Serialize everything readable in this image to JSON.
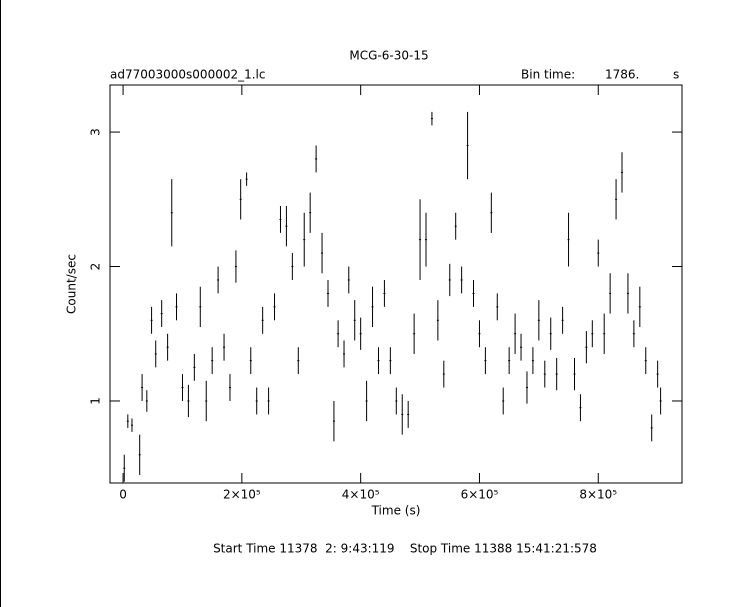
{
  "chart_data": {
    "type": "errorbar",
    "title": "MCG-6-30-15",
    "file_name": "ad77003000s000002_1.lc",
    "bin_time_label": "Bin time:",
    "bin_time": "1786.",
    "bin_time_unit": "s",
    "xlabel": "Time (s)",
    "ylabel": "Count/sec",
    "footer": "Start Time 11378  2: 9:43:119    Stop Time 11388 15:41:21:578",
    "xlim": [
      -22000,
      941000
    ],
    "ylim": [
      0.39,
      3.35
    ],
    "xticks": [
      0,
      {
        "value": 200000,
        "label": "2×10⁵"
      },
      {
        "value": 400000,
        "label": "4×10⁵"
      },
      {
        "value": 600000,
        "label": "6×10⁵"
      },
      {
        "value": 800000,
        "label": "8×10⁵"
      }
    ],
    "yticks": [
      1,
      2,
      3
    ],
    "color": "#000000",
    "x": [
      2000,
      8000,
      15000,
      28000,
      32000,
      40000,
      48000,
      55000,
      65000,
      75000,
      82000,
      90000,
      100000,
      110000,
      120000,
      130000,
      140000,
      150000,
      160000,
      170000,
      180000,
      190000,
      198000,
      208000,
      215000,
      225000,
      235000,
      245000,
      255000,
      265000,
      275000,
      285000,
      295000,
      305000,
      315000,
      325000,
      335000,
      345000,
      355000,
      362000,
      372000,
      380000,
      390000,
      400000,
      410000,
      420000,
      430000,
      440000,
      450000,
      460000,
      470000,
      480000,
      490000,
      500000,
      510000,
      520000,
      530000,
      540000,
      550000,
      560000,
      570000,
      580000,
      590000,
      600000,
      610000,
      620000,
      630000,
      640000,
      650000,
      660000,
      670000,
      680000,
      690000,
      700000,
      710000,
      720000,
      730000,
      740000,
      750000,
      760000,
      770000,
      780000,
      790000,
      800000,
      810000,
      820000,
      830000,
      840000,
      850000,
      860000,
      870000,
      880000,
      890000,
      900000,
      905000
    ],
    "values": [
      0.5,
      0.85,
      0.82,
      0.6,
      1.1,
      1.0,
      1.6,
      1.35,
      1.65,
      1.4,
      2.4,
      1.7,
      1.1,
      1.0,
      1.25,
      1.7,
      1.0,
      1.3,
      1.9,
      1.4,
      1.1,
      2.0,
      2.5,
      2.65,
      1.3,
      1.0,
      1.6,
      1.0,
      1.7,
      2.35,
      2.3,
      2.0,
      1.3,
      2.2,
      2.4,
      2.8,
      2.1,
      1.8,
      0.85,
      1.5,
      1.35,
      1.9,
      1.6,
      1.5,
      1.0,
      1.7,
      1.3,
      1.8,
      1.3,
      1.0,
      0.9,
      0.9,
      1.5,
      2.2,
      2.2,
      3.1,
      1.6,
      1.2,
      1.9,
      2.3,
      1.9,
      2.9,
      1.8,
      1.5,
      1.3,
      2.4,
      1.7,
      1.0,
      1.3,
      1.5,
      1.4,
      1.1,
      1.3,
      1.6,
      1.2,
      1.5,
      1.2,
      1.6,
      2.2,
      1.2,
      0.95,
      1.4,
      1.5,
      2.1,
      1.5,
      1.8,
      2.5,
      2.7,
      1.8,
      1.5,
      1.7,
      1.3,
      0.8,
      1.2,
      1.0
    ],
    "errors": [
      0.1,
      0.05,
      0.05,
      0.15,
      0.1,
      0.08,
      0.1,
      0.1,
      0.1,
      0.1,
      0.25,
      0.1,
      0.1,
      0.12,
      0.1,
      0.15,
      0.15,
      0.1,
      0.1,
      0.1,
      0.1,
      0.12,
      0.15,
      0.05,
      0.1,
      0.1,
      0.1,
      0.1,
      0.1,
      0.1,
      0.15,
      0.1,
      0.1,
      0.2,
      0.15,
      0.1,
      0.15,
      0.1,
      0.15,
      0.1,
      0.1,
      0.1,
      0.15,
      0.12,
      0.15,
      0.15,
      0.1,
      0.1,
      0.1,
      0.1,
      0.15,
      0.1,
      0.15,
      0.3,
      0.2,
      0.05,
      0.15,
      0.1,
      0.12,
      0.1,
      0.1,
      0.25,
      0.1,
      0.1,
      0.1,
      0.15,
      0.1,
      0.1,
      0.1,
      0.15,
      0.1,
      0.12,
      0.1,
      0.15,
      0.1,
      0.12,
      0.12,
      0.1,
      0.2,
      0.12,
      0.1,
      0.12,
      0.1,
      0.1,
      0.15,
      0.15,
      0.15,
      0.15,
      0.15,
      0.1,
      0.15,
      0.1,
      0.1,
      0.1,
      0.1
    ]
  }
}
